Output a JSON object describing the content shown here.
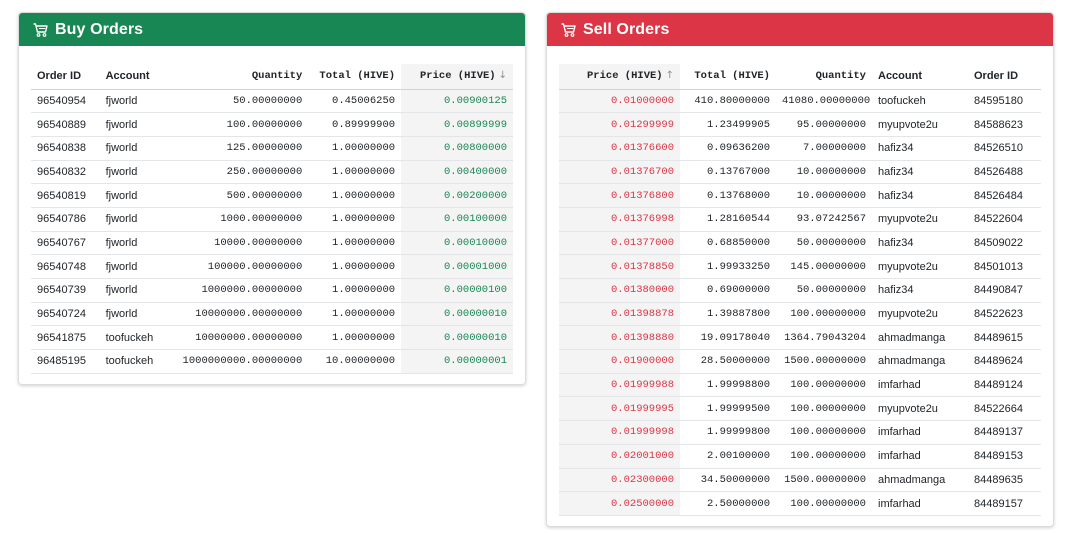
{
  "buy": {
    "title": "Buy Orders",
    "headers": {
      "order_id": "Order ID",
      "account": "Account",
      "quantity": "Quantity",
      "total": "Total (HIVE)",
      "price": "Price (HIVE)",
      "sort_arrow": "↓"
    },
    "rows": [
      {
        "order_id": "96540954",
        "account": "fjworld",
        "quantity": "50.00000000",
        "total": "0.45006250",
        "price": "0.00900125"
      },
      {
        "order_id": "96540889",
        "account": "fjworld",
        "quantity": "100.00000000",
        "total": "0.89999900",
        "price": "0.00899999"
      },
      {
        "order_id": "96540838",
        "account": "fjworld",
        "quantity": "125.00000000",
        "total": "1.00000000",
        "price": "0.00800000"
      },
      {
        "order_id": "96540832",
        "account": "fjworld",
        "quantity": "250.00000000",
        "total": "1.00000000",
        "price": "0.00400000"
      },
      {
        "order_id": "96540819",
        "account": "fjworld",
        "quantity": "500.00000000",
        "total": "1.00000000",
        "price": "0.00200000"
      },
      {
        "order_id": "96540786",
        "account": "fjworld",
        "quantity": "1000.00000000",
        "total": "1.00000000",
        "price": "0.00100000"
      },
      {
        "order_id": "96540767",
        "account": "fjworld",
        "quantity": "10000.00000000",
        "total": "1.00000000",
        "price": "0.00010000"
      },
      {
        "order_id": "96540748",
        "account": "fjworld",
        "quantity": "100000.00000000",
        "total": "1.00000000",
        "price": "0.00001000"
      },
      {
        "order_id": "96540739",
        "account": "fjworld",
        "quantity": "1000000.00000000",
        "total": "1.00000000",
        "price": "0.00000100"
      },
      {
        "order_id": "96540724",
        "account": "fjworld",
        "quantity": "10000000.00000000",
        "total": "1.00000000",
        "price": "0.00000010"
      },
      {
        "order_id": "96541875",
        "account": "toofuckeh",
        "quantity": "10000000.00000000",
        "total": "1.00000000",
        "price": "0.00000010"
      },
      {
        "order_id": "96485195",
        "account": "toofuckeh",
        "quantity": "1000000000.00000000",
        "total": "10.00000000",
        "price": "0.00000001"
      }
    ]
  },
  "sell": {
    "title": "Sell Orders",
    "headers": {
      "price": "Price (HIVE)",
      "sort_arrow": "↑",
      "total": "Total (HIVE)",
      "quantity": "Quantity",
      "account": "Account",
      "order_id": "Order ID"
    },
    "rows": [
      {
        "price": "0.01000000",
        "total": "410.80000000",
        "quantity": "41080.00000000",
        "account": "toofuckeh",
        "order_id": "84595180"
      },
      {
        "price": "0.01299999",
        "total": "1.23499905",
        "quantity": "95.00000000",
        "account": "myupvote2u",
        "order_id": "84588623"
      },
      {
        "price": "0.01376600",
        "total": "0.09636200",
        "quantity": "7.00000000",
        "account": "hafiz34",
        "order_id": "84526510"
      },
      {
        "price": "0.01376700",
        "total": "0.13767000",
        "quantity": "10.00000000",
        "account": "hafiz34",
        "order_id": "84526488"
      },
      {
        "price": "0.01376800",
        "total": "0.13768000",
        "quantity": "10.00000000",
        "account": "hafiz34",
        "order_id": "84526484"
      },
      {
        "price": "0.01376998",
        "total": "1.28160544",
        "quantity": "93.07242567",
        "account": "myupvote2u",
        "order_id": "84522604"
      },
      {
        "price": "0.01377000",
        "total": "0.68850000",
        "quantity": "50.00000000",
        "account": "hafiz34",
        "order_id": "84509022"
      },
      {
        "price": "0.01378850",
        "total": "1.99933250",
        "quantity": "145.00000000",
        "account": "myupvote2u",
        "order_id": "84501013"
      },
      {
        "price": "0.01380000",
        "total": "0.69000000",
        "quantity": "50.00000000",
        "account": "hafiz34",
        "order_id": "84490847"
      },
      {
        "price": "0.01398878",
        "total": "1.39887800",
        "quantity": "100.00000000",
        "account": "myupvote2u",
        "order_id": "84522623"
      },
      {
        "price": "0.01398880",
        "total": "19.09178040",
        "quantity": "1364.79043204",
        "account": "ahmadmanga",
        "order_id": "84489615"
      },
      {
        "price": "0.01900000",
        "total": "28.50000000",
        "quantity": "1500.00000000",
        "account": "ahmadmanga",
        "order_id": "84489624"
      },
      {
        "price": "0.01999988",
        "total": "1.99998800",
        "quantity": "100.00000000",
        "account": "imfarhad",
        "order_id": "84489124"
      },
      {
        "price": "0.01999995",
        "total": "1.99999500",
        "quantity": "100.00000000",
        "account": "myupvote2u",
        "order_id": "84522664"
      },
      {
        "price": "0.01999998",
        "total": "1.99999800",
        "quantity": "100.00000000",
        "account": "imfarhad",
        "order_id": "84489137"
      },
      {
        "price": "0.02001000",
        "total": "2.00100000",
        "quantity": "100.00000000",
        "account": "imfarhad",
        "order_id": "84489153"
      },
      {
        "price": "0.02300000",
        "total": "34.50000000",
        "quantity": "1500.00000000",
        "account": "ahmadmanga",
        "order_id": "84489635"
      },
      {
        "price": "0.02500000",
        "total": "2.50000000",
        "quantity": "100.00000000",
        "account": "imfarhad",
        "order_id": "84489157"
      }
    ]
  },
  "colors": {
    "buy_header": "#198754",
    "sell_header": "#dc3545",
    "buy_price": "#198754",
    "sell_price": "#dc3545"
  },
  "icons": {
    "header_icon": "shopping-cart-icon"
  }
}
